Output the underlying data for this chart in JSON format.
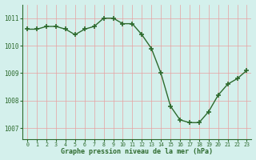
{
  "x": [
    0,
    1,
    2,
    3,
    4,
    5,
    6,
    7,
    8,
    9,
    10,
    11,
    12,
    13,
    14,
    15,
    16,
    17,
    18,
    19,
    20,
    21,
    22,
    23
  ],
  "y": [
    1010.6,
    1010.6,
    1010.7,
    1010.7,
    1010.6,
    1010.4,
    1010.6,
    1010.7,
    1011.0,
    1011.0,
    1010.8,
    1010.8,
    1010.4,
    1009.9,
    1009.0,
    1007.8,
    1007.3,
    1007.2,
    1007.2,
    1007.6,
    1008.2,
    1008.6,
    1008.8,
    1009.1
  ],
  "line_color": "#2d6a2d",
  "marker": "+",
  "bg_color": "#d4f0ec",
  "grid_color": "#e8a0a0",
  "xlabel": "Graphe pression niveau de la mer (hPa)",
  "xlabel_color": "#2d6a2d",
  "tick_color": "#2d6a2d",
  "ylim": [
    1006.6,
    1011.5
  ],
  "yticks": [
    1007,
    1008,
    1009,
    1010,
    1011
  ],
  "xticks": [
    0,
    1,
    2,
    3,
    4,
    5,
    6,
    7,
    8,
    9,
    10,
    11,
    12,
    13,
    14,
    15,
    16,
    17,
    18,
    19,
    20,
    21,
    22,
    23
  ]
}
